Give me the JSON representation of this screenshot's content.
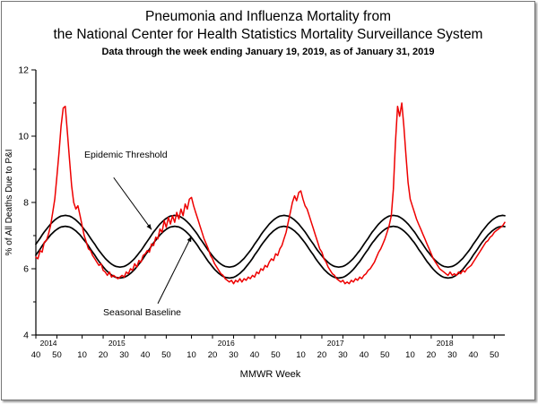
{
  "header": {
    "title_line1": "Pneumonia and Influenza Mortality from",
    "title_line2": "the National Center for Health Statistics Mortality Surveillance System",
    "subtitle": "Data through the week ending January 19, 2019, as of January 31, 2019"
  },
  "chart_data": {
    "type": "line",
    "title": "Pneumonia and Influenza Mortality from the National Center for Health Statistics Mortality Surveillance System",
    "xlabel": "MMWR Week",
    "ylabel": "% of All Deaths Due to P&I",
    "ylim": [
      4,
      12
    ],
    "y_ticks": [
      4,
      6,
      8,
      10,
      12
    ],
    "y_minor_ticks": [
      5,
      7,
      9,
      11
    ],
    "x_start": "2014 week 40",
    "x_end": "2019 week 3",
    "x_interval": "weekly",
    "grid": "off",
    "x_tick_pos": [
      0,
      10,
      22,
      32,
      42,
      52,
      62,
      74,
      84,
      94,
      104,
      114,
      126,
      136,
      146,
      156,
      166,
      178,
      188,
      198,
      208,
      218
    ],
    "x_tick_labels": [
      "40",
      "50",
      "10",
      "20",
      "30",
      "40",
      "50",
      "10",
      "20",
      "30",
      "40",
      "50",
      "10",
      "20",
      "30",
      "40",
      "50",
      "10",
      "20",
      "30",
      "40",
      "50"
    ],
    "years": [
      {
        "pos": 6,
        "label": "2014"
      },
      {
        "pos": 38.5,
        "label": "2015"
      },
      {
        "pos": 90.5,
        "label": "2016"
      },
      {
        "pos": 142.5,
        "label": "2017"
      },
      {
        "pos": 194.5,
        "label": "2018"
      }
    ],
    "series": [
      {
        "id": "epidemic-threshold-line",
        "name": "Epidemic Threshold",
        "color": "#000000",
        "width": 1.7,
        "values": [
          6.74,
          6.83,
          6.92,
          7.02,
          7.11,
          7.19,
          7.27,
          7.35,
          7.41,
          7.47,
          7.52,
          7.56,
          7.59,
          7.6,
          7.61,
          7.6,
          7.59,
          7.56,
          7.52,
          7.47,
          7.41,
          7.35,
          7.27,
          7.19,
          7.11,
          7.02,
          6.92,
          6.83,
          6.74,
          6.64,
          6.55,
          6.47,
          6.39,
          6.31,
          6.25,
          6.19,
          6.14,
          6.1,
          6.07,
          6.06,
          6.05,
          6.06,
          6.07,
          6.1,
          6.14,
          6.19,
          6.25,
          6.31,
          6.39,
          6.47,
          6.55,
          6.64,
          6.74,
          6.83,
          6.92,
          7.02,
          7.11,
          7.19,
          7.27,
          7.35,
          7.41,
          7.47,
          7.52,
          7.56,
          7.59,
          7.6,
          7.61,
          7.6,
          7.59,
          7.56,
          7.52,
          7.47,
          7.41,
          7.35,
          7.27,
          7.19,
          7.11,
          7.02,
          6.92,
          6.83,
          6.74,
          6.64,
          6.55,
          6.47,
          6.39,
          6.31,
          6.25,
          6.19,
          6.14,
          6.1,
          6.07,
          6.06,
          6.05,
          6.06,
          6.07,
          6.1,
          6.14,
          6.19,
          6.25,
          6.31,
          6.39,
          6.47,
          6.55,
          6.64,
          6.74,
          6.83,
          6.92,
          7.02,
          7.11,
          7.19,
          7.27,
          7.35,
          7.41,
          7.47,
          7.52,
          7.56,
          7.59,
          7.6,
          7.61,
          7.6,
          7.59,
          7.56,
          7.52,
          7.47,
          7.41,
          7.35,
          7.27,
          7.19,
          7.11,
          7.02,
          6.92,
          6.83,
          6.74,
          6.64,
          6.55,
          6.47,
          6.39,
          6.31,
          6.25,
          6.19,
          6.14,
          6.1,
          6.07,
          6.06,
          6.05,
          6.06,
          6.07,
          6.1,
          6.14,
          6.19,
          6.25,
          6.31,
          6.39,
          6.47,
          6.55,
          6.64,
          6.74,
          6.83,
          6.92,
          7.02,
          7.11,
          7.19,
          7.27,
          7.35,
          7.41,
          7.47,
          7.52,
          7.56,
          7.59,
          7.6,
          7.61,
          7.6,
          7.59,
          7.56,
          7.52,
          7.47,
          7.41,
          7.35,
          7.27,
          7.19,
          7.11,
          7.02,
          6.92,
          6.83,
          6.74,
          6.64,
          6.55,
          6.47,
          6.39,
          6.31,
          6.25,
          6.19,
          6.14,
          6.1,
          6.07,
          6.06,
          6.05,
          6.06,
          6.07,
          6.1,
          6.14,
          6.19,
          6.25,
          6.31,
          6.39,
          6.47,
          6.55,
          6.64,
          6.74,
          6.83,
          6.92,
          7.02,
          7.11,
          7.19,
          7.27,
          7.35,
          7.41,
          7.47,
          7.52,
          7.56,
          7.59,
          7.6,
          7.61,
          7.6
        ]
      },
      {
        "id": "seasonal-baseline-line",
        "name": "Seasonal Baseline",
        "color": "#000000",
        "width": 1.7,
        "values": [
          6.41,
          6.5,
          6.59,
          6.69,
          6.78,
          6.86,
          6.94,
          7.02,
          7.08,
          7.14,
          7.19,
          7.23,
          7.26,
          7.27,
          7.28,
          7.27,
          7.26,
          7.23,
          7.19,
          7.14,
          7.08,
          7.02,
          6.94,
          6.86,
          6.78,
          6.69,
          6.59,
          6.5,
          6.41,
          6.31,
          6.22,
          6.14,
          6.06,
          5.98,
          5.92,
          5.86,
          5.81,
          5.77,
          5.74,
          5.73,
          5.72,
          5.73,
          5.74,
          5.77,
          5.81,
          5.86,
          5.92,
          5.98,
          6.06,
          6.14,
          6.22,
          6.31,
          6.41,
          6.5,
          6.59,
          6.69,
          6.78,
          6.86,
          6.94,
          7.02,
          7.08,
          7.14,
          7.19,
          7.23,
          7.26,
          7.27,
          7.28,
          7.27,
          7.26,
          7.23,
          7.19,
          7.14,
          7.08,
          7.02,
          6.94,
          6.86,
          6.78,
          6.69,
          6.59,
          6.5,
          6.41,
          6.31,
          6.22,
          6.14,
          6.06,
          5.98,
          5.92,
          5.86,
          5.81,
          5.77,
          5.74,
          5.73,
          5.72,
          5.73,
          5.74,
          5.77,
          5.81,
          5.86,
          5.92,
          5.98,
          6.06,
          6.14,
          6.22,
          6.31,
          6.41,
          6.5,
          6.59,
          6.69,
          6.78,
          6.86,
          6.94,
          7.02,
          7.08,
          7.14,
          7.19,
          7.23,
          7.26,
          7.27,
          7.28,
          7.27,
          7.26,
          7.23,
          7.19,
          7.14,
          7.08,
          7.02,
          6.94,
          6.86,
          6.78,
          6.69,
          6.59,
          6.5,
          6.41,
          6.31,
          6.22,
          6.14,
          6.06,
          5.98,
          5.92,
          5.86,
          5.81,
          5.77,
          5.74,
          5.73,
          5.72,
          5.73,
          5.74,
          5.77,
          5.81,
          5.86,
          5.92,
          5.98,
          6.06,
          6.14,
          6.22,
          6.31,
          6.41,
          6.5,
          6.59,
          6.69,
          6.78,
          6.86,
          6.94,
          7.02,
          7.08,
          7.14,
          7.19,
          7.23,
          7.26,
          7.27,
          7.28,
          7.27,
          7.26,
          7.23,
          7.19,
          7.14,
          7.08,
          7.02,
          6.94,
          6.86,
          6.78,
          6.69,
          6.59,
          6.5,
          6.41,
          6.31,
          6.22,
          6.14,
          6.06,
          5.98,
          5.92,
          5.86,
          5.81,
          5.77,
          5.74,
          5.73,
          5.72,
          5.73,
          5.74,
          5.77,
          5.81,
          5.86,
          5.92,
          5.98,
          6.06,
          6.14,
          6.22,
          6.31,
          6.41,
          6.5,
          6.59,
          6.69,
          6.78,
          6.86,
          6.94,
          7.02,
          7.08,
          7.14,
          7.19,
          7.23,
          7.26,
          7.27,
          7.28,
          7.27
        ]
      },
      {
        "id": "pi-mortality-line",
        "name": "% of All Deaths Due to P&I",
        "color": "#ee0000",
        "width": 1.5,
        "values": [
          6.35,
          6.3,
          6.55,
          6.5,
          6.8,
          6.85,
          7.05,
          7.3,
          7.7,
          8.1,
          8.8,
          9.5,
          10.3,
          10.85,
          10.9,
          10.1,
          9.3,
          8.5,
          8.0,
          7.8,
          7.9,
          7.6,
          7.3,
          7.0,
          6.8,
          6.6,
          6.55,
          6.4,
          6.3,
          6.2,
          6.1,
          6.15,
          5.95,
          5.9,
          5.8,
          5.9,
          5.75,
          5.8,
          5.75,
          5.7,
          5.75,
          5.8,
          5.75,
          5.9,
          5.85,
          6.0,
          5.95,
          6.15,
          6.05,
          6.25,
          6.2,
          6.4,
          6.45,
          6.55,
          6.5,
          6.75,
          6.7,
          6.95,
          6.9,
          7.2,
          7.1,
          7.45,
          7.25,
          7.55,
          7.35,
          7.6,
          7.4,
          7.7,
          7.5,
          7.8,
          7.6,
          7.95,
          7.8,
          8.1,
          8.15,
          7.9,
          7.7,
          7.5,
          7.3,
          7.1,
          6.9,
          6.75,
          6.6,
          6.4,
          6.3,
          6.15,
          6.05,
          5.95,
          5.85,
          5.8,
          5.7,
          5.65,
          5.6,
          5.65,
          5.55,
          5.65,
          5.6,
          5.7,
          5.6,
          5.7,
          5.65,
          5.75,
          5.7,
          5.8,
          5.75,
          5.9,
          5.85,
          6.0,
          5.95,
          6.1,
          6.05,
          6.2,
          6.3,
          6.25,
          6.45,
          6.4,
          6.6,
          6.7,
          6.9,
          7.1,
          7.4,
          7.7,
          8.0,
          8.2,
          8.05,
          8.3,
          8.35,
          8.1,
          7.9,
          7.8,
          7.6,
          7.4,
          7.2,
          7.0,
          6.8,
          6.6,
          6.5,
          6.3,
          6.2,
          6.05,
          5.95,
          5.85,
          5.8,
          5.7,
          5.65,
          5.6,
          5.65,
          5.55,
          5.6,
          5.55,
          5.65,
          5.6,
          5.7,
          5.65,
          5.75,
          5.7,
          5.8,
          5.85,
          5.95,
          6.0,
          6.1,
          6.2,
          6.35,
          6.5,
          6.6,
          6.75,
          6.9,
          7.1,
          7.3,
          7.6,
          8.4,
          9.8,
          10.9,
          10.6,
          11.0,
          10.3,
          9.4,
          8.6,
          8.1,
          7.9,
          7.7,
          7.5,
          7.35,
          7.2,
          7.05,
          6.9,
          6.75,
          6.6,
          6.45,
          6.3,
          6.2,
          6.1,
          6.0,
          5.95,
          5.9,
          5.85,
          5.8,
          5.9,
          5.8,
          5.85,
          5.8,
          5.9,
          5.85,
          5.95,
          5.9,
          6.0,
          6.05,
          6.1,
          6.2,
          6.3,
          6.4,
          6.5,
          6.6,
          6.7,
          6.8,
          6.85,
          6.95,
          7.0,
          7.1,
          7.15,
          7.2,
          7.25,
          7.3,
          7.4
        ]
      }
    ],
    "annotations": [
      {
        "id": "epidemic-threshold-annotation",
        "text": "Epidemic Threshold",
        "text_t": 23,
        "text_v": 9.35,
        "from_t": 37,
        "from_v": 8.75,
        "to_t": 55,
        "to_v": 7.18
      },
      {
        "id": "seasonal-baseline-annotation",
        "text": "Seasonal Baseline",
        "text_t": 32,
        "text_v": 4.6,
        "from_t": 58,
        "from_v": 4.95,
        "to_t": 74,
        "to_v": 6.98
      }
    ]
  }
}
